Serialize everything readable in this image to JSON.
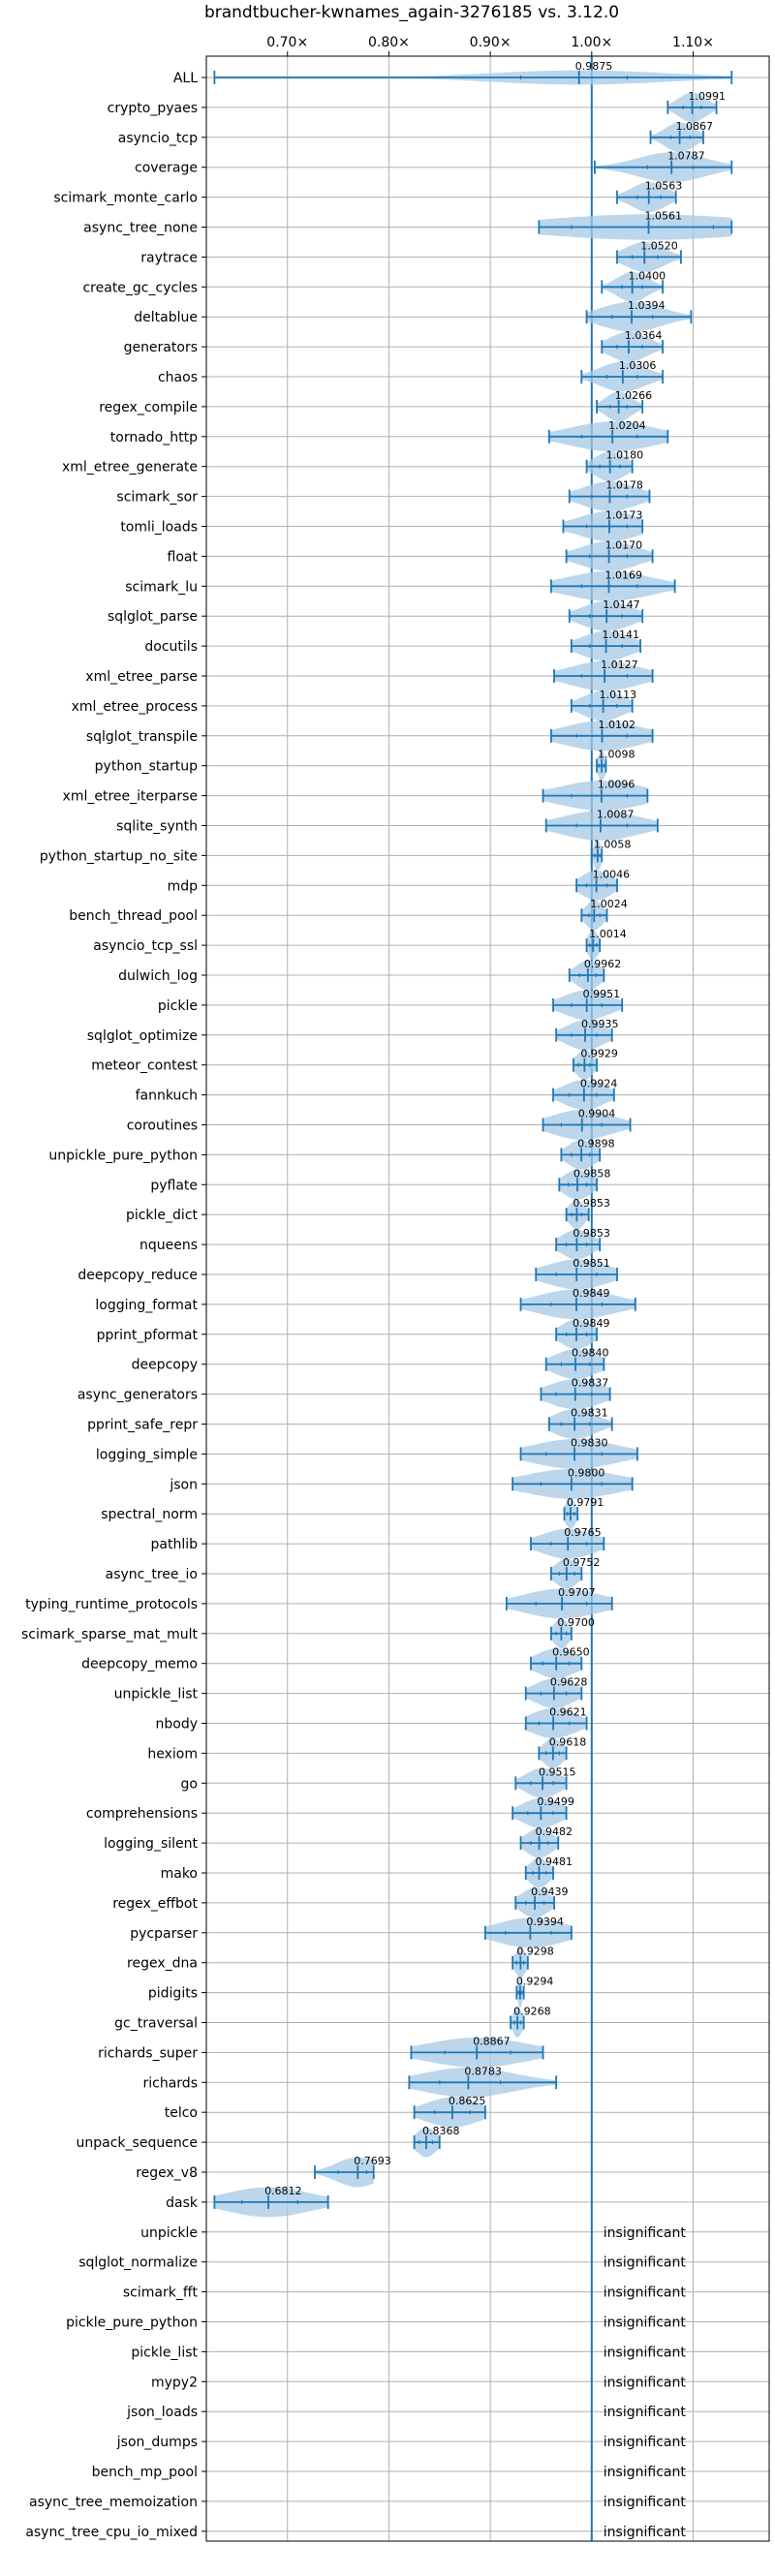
{
  "chart_data": {
    "type": "violin",
    "title": "brandtbucher-kwnames_again-3276185 vs. 3.12.0",
    "xlim": [
      0.62,
      1.175
    ],
    "xticks": [
      0.7,
      0.8,
      0.9,
      1.0,
      1.1
    ],
    "xtick_labels": [
      "0.70×",
      "0.80×",
      "0.90×",
      "1.00×",
      "1.10×"
    ],
    "reference_line": 1.0,
    "grid": true,
    "colors": {
      "main": "#1f77b4",
      "violin": "#a6c8e6",
      "grid": "#b0b0b0"
    },
    "insignificant_label": "insignificant",
    "benchmarks": [
      {
        "name": "ALL",
        "median": 0.9875,
        "min": 0.628,
        "max": 1.138,
        "q1": 0.93,
        "q3": 1.035,
        "width": 0.05,
        "label": "0.9875"
      },
      {
        "name": "crypto_pyaes",
        "median": 1.0991,
        "min": 1.075,
        "max": 1.123,
        "q1": 1.09,
        "q3": 1.108,
        "width": 0.08,
        "label": "1.0991"
      },
      {
        "name": "asyncio_tcp",
        "median": 1.0867,
        "min": 1.058,
        "max": 1.11,
        "q1": 1.078,
        "q3": 1.097,
        "width": 0.08,
        "label": "1.0867"
      },
      {
        "name": "coverage",
        "median": 1.0787,
        "min": 1.003,
        "max": 1.138,
        "q1": 1.055,
        "q3": 1.1,
        "width": 0.05,
        "label": "1.0787"
      },
      {
        "name": "scimark_monte_carlo",
        "median": 1.0563,
        "min": 1.025,
        "max": 1.083,
        "q1": 1.045,
        "q3": 1.068,
        "width": 0.08,
        "label": "1.0563"
      },
      {
        "name": "async_tree_none",
        "median": 1.0561,
        "min": 0.948,
        "max": 1.138,
        "q1": 0.98,
        "q3": 1.12,
        "width": 0.05,
        "label": "1.0561"
      },
      {
        "name": "raytrace",
        "median": 1.052,
        "min": 1.025,
        "max": 1.088,
        "q1": 1.04,
        "q3": 1.065,
        "width": 0.08,
        "label": "1.0520"
      },
      {
        "name": "create_gc_cycles",
        "median": 1.04,
        "min": 1.01,
        "max": 1.07,
        "q1": 1.03,
        "q3": 1.05,
        "width": 0.07,
        "label": "1.0400"
      },
      {
        "name": "deltablue",
        "median": 1.0394,
        "min": 0.995,
        "max": 1.098,
        "q1": 1.02,
        "q3": 1.06,
        "width": 0.05,
        "label": "1.0394"
      },
      {
        "name": "generators",
        "median": 1.0364,
        "min": 1.01,
        "max": 1.07,
        "q1": 1.025,
        "q3": 1.05,
        "width": 0.07,
        "label": "1.0364"
      },
      {
        "name": "chaos",
        "median": 1.0306,
        "min": 0.99,
        "max": 1.07,
        "q1": 1.015,
        "q3": 1.045,
        "width": 0.06,
        "label": "1.0306"
      },
      {
        "name": "regex_compile",
        "median": 1.0266,
        "min": 1.005,
        "max": 1.05,
        "q1": 1.018,
        "q3": 1.035,
        "width": 0.07,
        "label": "1.0266"
      },
      {
        "name": "tornado_http",
        "median": 1.0204,
        "min": 0.958,
        "max": 1.075,
        "q1": 0.99,
        "q3": 1.045,
        "width": 0.05,
        "label": "1.0204"
      },
      {
        "name": "xml_etree_generate",
        "median": 1.018,
        "min": 0.995,
        "max": 1.04,
        "q1": 1.008,
        "q3": 1.028,
        "width": 0.07,
        "label": "1.0180"
      },
      {
        "name": "scimark_sor",
        "median": 1.0178,
        "min": 0.978,
        "max": 1.057,
        "q1": 1.0,
        "q3": 1.035,
        "width": 0.06,
        "label": "1.0178"
      },
      {
        "name": "tomli_loads",
        "median": 1.0173,
        "min": 0.972,
        "max": 1.05,
        "q1": 0.995,
        "q3": 1.035,
        "width": 0.06,
        "label": "1.0173"
      },
      {
        "name": "float",
        "median": 1.017,
        "min": 0.975,
        "max": 1.06,
        "q1": 0.998,
        "q3": 1.035,
        "width": 0.06,
        "label": "1.0170"
      },
      {
        "name": "scimark_lu",
        "median": 1.0169,
        "min": 0.96,
        "max": 1.082,
        "q1": 0.99,
        "q3": 1.045,
        "width": 0.05,
        "label": "1.0169"
      },
      {
        "name": "sqlglot_parse",
        "median": 1.0147,
        "min": 0.978,
        "max": 1.05,
        "q1": 0.998,
        "q3": 1.03,
        "width": 0.06,
        "label": "1.0147"
      },
      {
        "name": "docutils",
        "median": 1.0141,
        "min": 0.98,
        "max": 1.048,
        "q1": 0.998,
        "q3": 1.03,
        "width": 0.06,
        "label": "1.0141"
      },
      {
        "name": "xml_etree_parse",
        "median": 1.0127,
        "min": 0.963,
        "max": 1.06,
        "q1": 0.99,
        "q3": 1.035,
        "width": 0.05,
        "label": "1.0127"
      },
      {
        "name": "xml_etree_process",
        "median": 1.0113,
        "min": 0.98,
        "max": 1.04,
        "q1": 0.998,
        "q3": 1.025,
        "width": 0.06,
        "label": "1.0113"
      },
      {
        "name": "sqlglot_transpile",
        "median": 1.0102,
        "min": 0.96,
        "max": 1.06,
        "q1": 0.985,
        "q3": 1.035,
        "width": 0.05,
        "label": "1.0102"
      },
      {
        "name": "python_startup",
        "median": 1.0098,
        "min": 1.005,
        "max": 1.014,
        "q1": 1.007,
        "q3": 1.012,
        "width": 0.07,
        "label": "1.0098"
      },
      {
        "name": "xml_etree_iterparse",
        "median": 1.0096,
        "min": 0.952,
        "max": 1.055,
        "q1": 0.98,
        "q3": 1.035,
        "width": 0.05,
        "label": "1.0096"
      },
      {
        "name": "sqlite_synth",
        "median": 1.0087,
        "min": 0.955,
        "max": 1.065,
        "q1": 0.985,
        "q3": 1.035,
        "width": 0.05,
        "label": "1.0087"
      },
      {
        "name": "python_startup_no_site",
        "median": 1.0058,
        "min": 1.0,
        "max": 1.01,
        "q1": 1.003,
        "q3": 1.008,
        "width": 0.07,
        "label": "1.0058"
      },
      {
        "name": "mdp",
        "median": 1.0046,
        "min": 0.985,
        "max": 1.025,
        "q1": 0.995,
        "q3": 1.015,
        "width": 0.06,
        "label": "1.0046"
      },
      {
        "name": "bench_thread_pool",
        "median": 1.0024,
        "min": 0.99,
        "max": 1.015,
        "q1": 0.997,
        "q3": 1.008,
        "width": 0.07,
        "label": "1.0024"
      },
      {
        "name": "asyncio_tcp_ssl",
        "median": 1.0014,
        "min": 0.995,
        "max": 1.008,
        "q1": 0.998,
        "q3": 1.005,
        "width": 0.07,
        "label": "1.0014"
      },
      {
        "name": "dulwich_log",
        "median": 0.9962,
        "min": 0.978,
        "max": 1.012,
        "q1": 0.988,
        "q3": 1.004,
        "width": 0.06,
        "label": "0.9962"
      },
      {
        "name": "pickle",
        "median": 0.9951,
        "min": 0.962,
        "max": 1.03,
        "q1": 0.98,
        "q3": 1.01,
        "width": 0.05,
        "label": "0.9951"
      },
      {
        "name": "sqlglot_optimize",
        "median": 0.9935,
        "min": 0.965,
        "max": 1.02,
        "q1": 0.98,
        "q3": 1.005,
        "width": 0.05,
        "label": "0.9935"
      },
      {
        "name": "meteor_contest",
        "median": 0.9929,
        "min": 0.982,
        "max": 1.005,
        "q1": 0.987,
        "q3": 0.998,
        "width": 0.06,
        "label": "0.9929"
      },
      {
        "name": "fannkuch",
        "median": 0.9924,
        "min": 0.962,
        "max": 1.022,
        "q1": 0.978,
        "q3": 1.005,
        "width": 0.05,
        "label": "0.9924"
      },
      {
        "name": "coroutines",
        "median": 0.9904,
        "min": 0.952,
        "max": 1.038,
        "q1": 0.97,
        "q3": 1.01,
        "width": 0.05,
        "label": "0.9904"
      },
      {
        "name": "unpickle_pure_python",
        "median": 0.9898,
        "min": 0.97,
        "max": 1.008,
        "q1": 0.98,
        "q3": 0.998,
        "width": 0.06,
        "label": "0.9898"
      },
      {
        "name": "pyflate",
        "median": 0.9858,
        "min": 0.968,
        "max": 1.005,
        "q1": 0.977,
        "q3": 0.995,
        "width": 0.06,
        "label": "0.9858"
      },
      {
        "name": "pickle_dict",
        "median": 0.9853,
        "min": 0.975,
        "max": 0.997,
        "q1": 0.98,
        "q3": 0.99,
        "width": 0.06,
        "label": "0.9853"
      },
      {
        "name": "nqueens",
        "median": 0.9853,
        "min": 0.965,
        "max": 1.008,
        "q1": 0.975,
        "q3": 0.995,
        "width": 0.06,
        "label": "0.9853"
      },
      {
        "name": "deepcopy_reduce",
        "median": 0.9851,
        "min": 0.945,
        "max": 1.025,
        "q1": 0.965,
        "q3": 1.005,
        "width": 0.05,
        "label": "0.9851"
      },
      {
        "name": "logging_format",
        "median": 0.9849,
        "min": 0.93,
        "max": 1.043,
        "q1": 0.96,
        "q3": 1.01,
        "width": 0.05,
        "label": "0.9849"
      },
      {
        "name": "pprint_pformat",
        "median": 0.9849,
        "min": 0.965,
        "max": 1.005,
        "q1": 0.975,
        "q3": 0.995,
        "width": 0.06,
        "label": "0.9849"
      },
      {
        "name": "deepcopy",
        "median": 0.984,
        "min": 0.955,
        "max": 1.012,
        "q1": 0.97,
        "q3": 0.998,
        "width": 0.05,
        "label": "0.9840"
      },
      {
        "name": "async_generators",
        "median": 0.9837,
        "min": 0.95,
        "max": 1.018,
        "q1": 0.965,
        "q3": 1.0,
        "width": 0.05,
        "label": "0.9837"
      },
      {
        "name": "pprint_safe_repr",
        "median": 0.9831,
        "min": 0.958,
        "max": 1.02,
        "q1": 0.97,
        "q3": 0.998,
        "width": 0.05,
        "label": "0.9831"
      },
      {
        "name": "logging_simple",
        "median": 0.983,
        "min": 0.93,
        "max": 1.045,
        "q1": 0.955,
        "q3": 1.01,
        "width": 0.05,
        "label": "0.9830"
      },
      {
        "name": "json",
        "median": 0.98,
        "min": 0.922,
        "max": 1.04,
        "q1": 0.95,
        "q3": 1.01,
        "width": 0.05,
        "label": "0.9800"
      },
      {
        "name": "spectral_norm",
        "median": 0.9791,
        "min": 0.973,
        "max": 0.986,
        "q1": 0.976,
        "q3": 0.983,
        "width": 0.06,
        "label": "0.9791"
      },
      {
        "name": "pathlib",
        "median": 0.9765,
        "min": 0.94,
        "max": 1.012,
        "q1": 0.96,
        "q3": 0.995,
        "width": 0.05,
        "label": "0.9765"
      },
      {
        "name": "async_tree_io",
        "median": 0.9752,
        "min": 0.96,
        "max": 0.99,
        "q1": 0.968,
        "q3": 0.983,
        "width": 0.06,
        "label": "0.9752"
      },
      {
        "name": "typing_runtime_protocols",
        "median": 0.9707,
        "min": 0.916,
        "max": 1.02,
        "q1": 0.945,
        "q3": 0.995,
        "width": 0.05,
        "label": "0.9707"
      },
      {
        "name": "scimark_sparse_mat_mult",
        "median": 0.97,
        "min": 0.96,
        "max": 0.98,
        "q1": 0.965,
        "q3": 0.975,
        "width": 0.06,
        "label": "0.9700"
      },
      {
        "name": "deepcopy_memo",
        "median": 0.965,
        "min": 0.94,
        "max": 0.99,
        "q1": 0.952,
        "q3": 0.978,
        "width": 0.05,
        "label": "0.9650"
      },
      {
        "name": "unpickle_list",
        "median": 0.9628,
        "min": 0.935,
        "max": 0.99,
        "q1": 0.95,
        "q3": 0.975,
        "width": 0.05,
        "label": "0.9628"
      },
      {
        "name": "nbody",
        "median": 0.9621,
        "min": 0.935,
        "max": 0.995,
        "q1": 0.948,
        "q3": 0.978,
        "width": 0.05,
        "label": "0.9621"
      },
      {
        "name": "hexiom",
        "median": 0.9618,
        "min": 0.948,
        "max": 0.975,
        "q1": 0.955,
        "q3": 0.968,
        "width": 0.06,
        "label": "0.9618"
      },
      {
        "name": "go",
        "median": 0.9515,
        "min": 0.925,
        "max": 0.975,
        "q1": 0.94,
        "q3": 0.962,
        "width": 0.05,
        "label": "0.9515"
      },
      {
        "name": "comprehensions",
        "median": 0.9499,
        "min": 0.922,
        "max": 0.975,
        "q1": 0.937,
        "q3": 0.962,
        "width": 0.05,
        "label": "0.9499"
      },
      {
        "name": "logging_silent",
        "median": 0.9482,
        "min": 0.93,
        "max": 0.967,
        "q1": 0.94,
        "q3": 0.957,
        "width": 0.05,
        "label": "0.9482"
      },
      {
        "name": "mako",
        "median": 0.9481,
        "min": 0.935,
        "max": 0.962,
        "q1": 0.942,
        "q3": 0.955,
        "width": 0.06,
        "label": "0.9481"
      },
      {
        "name": "regex_effbot",
        "median": 0.9439,
        "min": 0.925,
        "max": 0.963,
        "q1": 0.935,
        "q3": 0.953,
        "width": 0.05,
        "label": "0.9439"
      },
      {
        "name": "pycparser",
        "median": 0.9394,
        "min": 0.895,
        "max": 0.98,
        "q1": 0.915,
        "q3": 0.96,
        "width": 0.05,
        "label": "0.9394"
      },
      {
        "name": "regex_dna",
        "median": 0.9298,
        "min": 0.922,
        "max": 0.937,
        "q1": 0.926,
        "q3": 0.933,
        "width": 0.06,
        "label": "0.9298"
      },
      {
        "name": "pidigits",
        "median": 0.9294,
        "min": 0.926,
        "max": 0.933,
        "q1": 0.928,
        "q3": 0.931,
        "width": 0.06,
        "label": "0.9294"
      },
      {
        "name": "gc_traversal",
        "median": 0.9268,
        "min": 0.92,
        "max": 0.933,
        "q1": 0.924,
        "q3": 0.93,
        "width": 0.06,
        "label": "0.9268"
      },
      {
        "name": "richards_super",
        "median": 0.8867,
        "min": 0.822,
        "max": 0.952,
        "q1": 0.855,
        "q3": 0.92,
        "width": 0.05,
        "label": "0.8867"
      },
      {
        "name": "richards",
        "median": 0.8783,
        "min": 0.82,
        "max": 0.965,
        "q1": 0.85,
        "q3": 0.91,
        "width": 0.05,
        "label": "0.8783"
      },
      {
        "name": "telco",
        "median": 0.8625,
        "min": 0.825,
        "max": 0.895,
        "q1": 0.845,
        "q3": 0.88,
        "width": 0.05,
        "label": "0.8625"
      },
      {
        "name": "unpack_sequence",
        "median": 0.8368,
        "min": 0.825,
        "max": 0.85,
        "q1": 0.83,
        "q3": 0.843,
        "width": 0.05,
        "label": "0.8368"
      },
      {
        "name": "regex_v8",
        "median": 0.7693,
        "min": 0.727,
        "max": 0.785,
        "q1": 0.75,
        "q3": 0.778,
        "width": 0.04,
        "label": "0.7693"
      },
      {
        "name": "dask",
        "median": 0.6812,
        "min": 0.628,
        "max": 0.74,
        "q1": 0.655,
        "q3": 0.71,
        "width": 0.05,
        "label": "0.6812"
      },
      {
        "name": "unpickle",
        "insignificant": true
      },
      {
        "name": "sqlglot_normalize",
        "insignificant": true
      },
      {
        "name": "scimark_fft",
        "insignificant": true
      },
      {
        "name": "pickle_pure_python",
        "insignificant": true
      },
      {
        "name": "pickle_list",
        "insignificant": true
      },
      {
        "name": "mypy2",
        "insignificant": true
      },
      {
        "name": "json_loads",
        "insignificant": true
      },
      {
        "name": "json_dumps",
        "insignificant": true
      },
      {
        "name": "bench_mp_pool",
        "insignificant": true
      },
      {
        "name": "async_tree_memoization",
        "insignificant": true
      },
      {
        "name": "async_tree_cpu_io_mixed",
        "insignificant": true
      }
    ]
  }
}
